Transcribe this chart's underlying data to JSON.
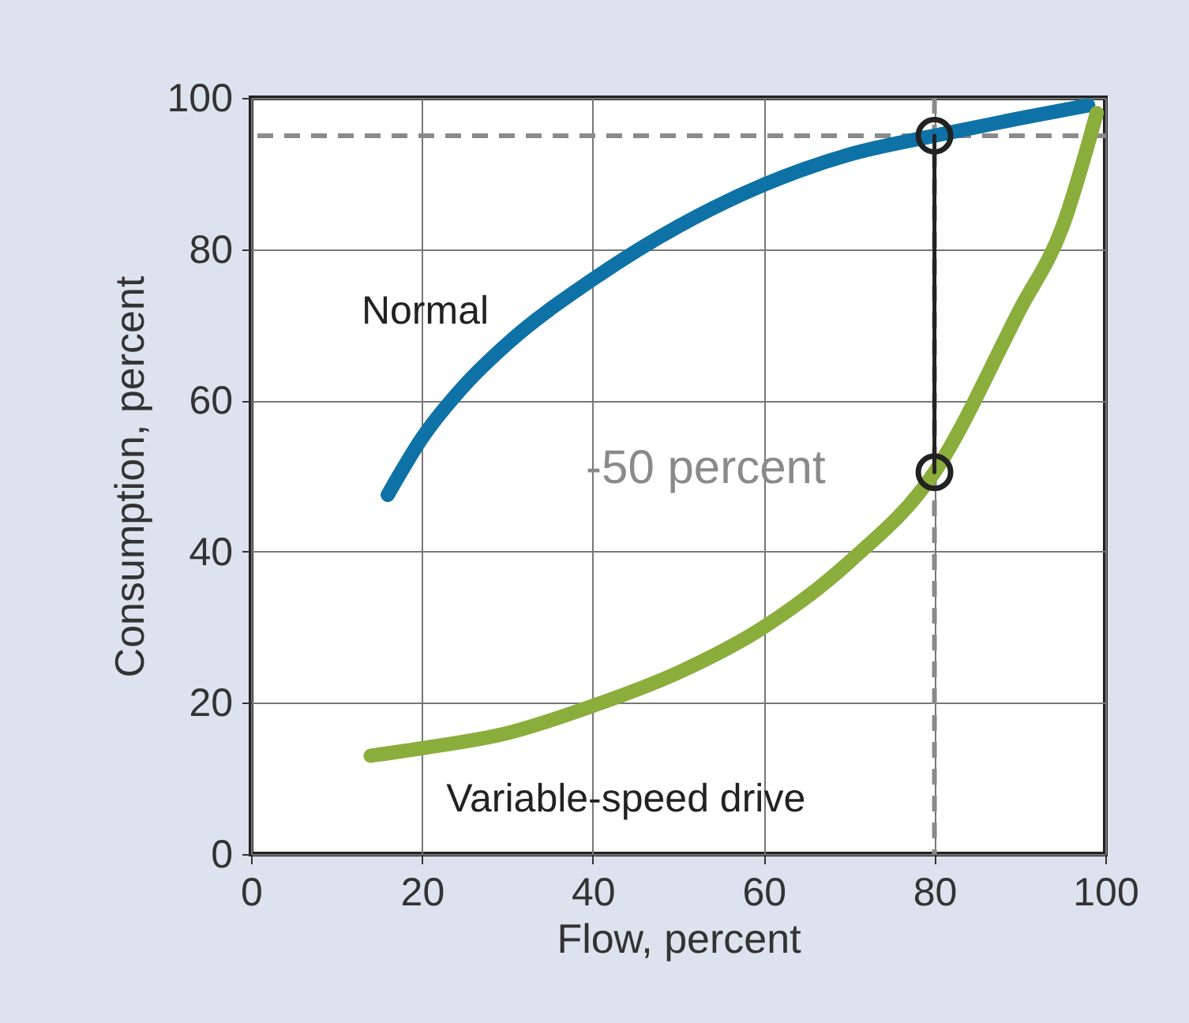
{
  "chart_data": {
    "type": "line",
    "xlabel": "Flow, percent",
    "ylabel": "Consumption, percent",
    "xlim": [
      0,
      100
    ],
    "ylim": [
      0,
      100
    ],
    "xticks": [
      0,
      20,
      40,
      60,
      80,
      100
    ],
    "yticks": [
      0,
      20,
      40,
      60,
      80,
      100
    ],
    "grid": true,
    "marker": "none",
    "line_style": "solid",
    "series": [
      {
        "name": "Normal",
        "color": "#0e72a6",
        "x": [
          16,
          20,
          25,
          30,
          40,
          50,
          60,
          70,
          80,
          90,
          98
        ],
        "values": [
          47.5,
          55,
          62,
          67.5,
          76,
          83,
          88.5,
          92.5,
          95,
          97.3,
          99
        ]
      },
      {
        "name": "Variable-speed drive",
        "color": "#8bad3c",
        "x": [
          14,
          20,
          30,
          40,
          50,
          60,
          70,
          80,
          90,
          95,
          99
        ],
        "values": [
          13,
          14,
          16,
          19.6,
          24,
          30,
          38.6,
          50.5,
          72,
          83,
          98
        ]
      },
      {
        "type": "line",
        "marker": "circle",
        "color": "#222222",
        "x": [
          80,
          80
        ],
        "values": [
          95,
          50.5
        ]
      }
    ],
    "ref_lines": [
      {
        "axis": "y",
        "value": 95,
        "color": "#8a8a8a",
        "line_style": "dashed"
      },
      {
        "axis": "x",
        "value": 80,
        "color": "#8a8a8a",
        "line_style": "dashed"
      }
    ],
    "annotations": [
      {
        "text": "-50 percent",
        "x": 80,
        "y": 50.5
      }
    ]
  }
}
